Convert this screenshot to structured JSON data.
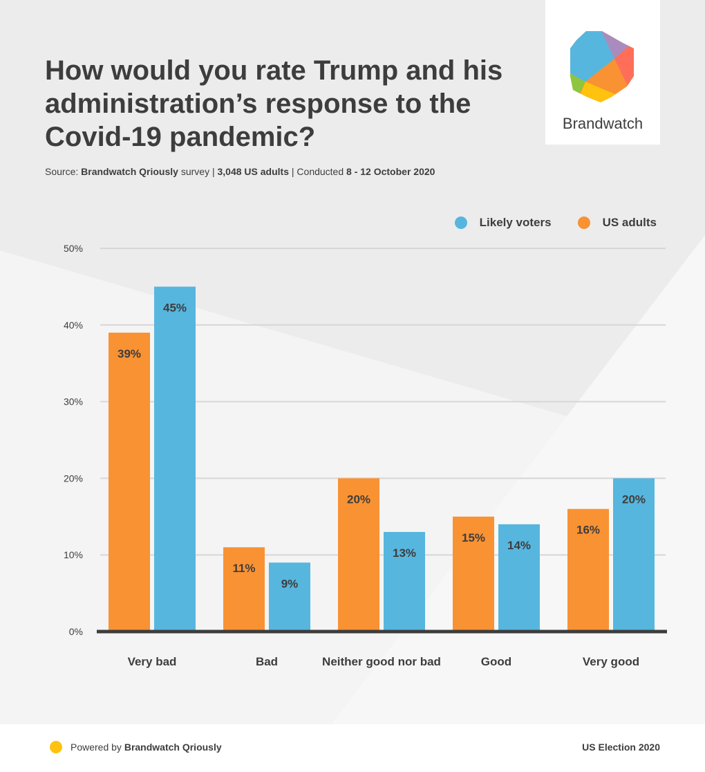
{
  "header": {
    "title": "How would you rate Trump and his administration’s response to the Covid-19 pandemic?",
    "source": {
      "p1": "Source: ",
      "p2": "Brandwatch Qriously",
      "p3": " survey |  ",
      "p4": "3,048 US adults",
      "p5": " | Conducted ",
      "p6": "8 - 12 October 2020"
    }
  },
  "logo": {
    "text": "Brandwatch"
  },
  "footer": {
    "powered_prefix": "Powered by ",
    "powered_brand": "Brandwatch Qriously",
    "right": "US Election 2020",
    "dot_color": "#ffc20e"
  },
  "chart_data": {
    "type": "bar",
    "title": "How would you rate Trump and his administration’s response to the Covid-19 pandemic?",
    "categories": [
      "Very bad",
      "Bad",
      "Neither good nor bad",
      "Good",
      "Very good"
    ],
    "series": [
      {
        "name": "US adults",
        "color": "#f99233",
        "values": [
          39,
          11,
          20,
          15,
          16
        ],
        "labels": [
          "39%",
          "11%",
          "20%",
          "15%",
          "16%"
        ]
      },
      {
        "name": "Likely voters",
        "color": "#57b6de",
        "values": [
          45,
          9,
          13,
          14,
          20
        ],
        "labels": [
          "45%",
          "9%",
          "13%",
          "14%",
          "20%"
        ]
      }
    ],
    "legend": [
      {
        "name": "Likely voters",
        "color": "#57b6de"
      },
      {
        "name": "US adults",
        "color": "#f99233"
      }
    ],
    "legend_position": "top-right",
    "ylim": [
      0,
      50
    ],
    "yticks": [
      0,
      10,
      20,
      30,
      40,
      50
    ],
    "ytick_labels": [
      "0%",
      "10%",
      "20%",
      "30%",
      "40%",
      "50%"
    ],
    "grid": true,
    "xlabel": "",
    "ylabel": ""
  }
}
